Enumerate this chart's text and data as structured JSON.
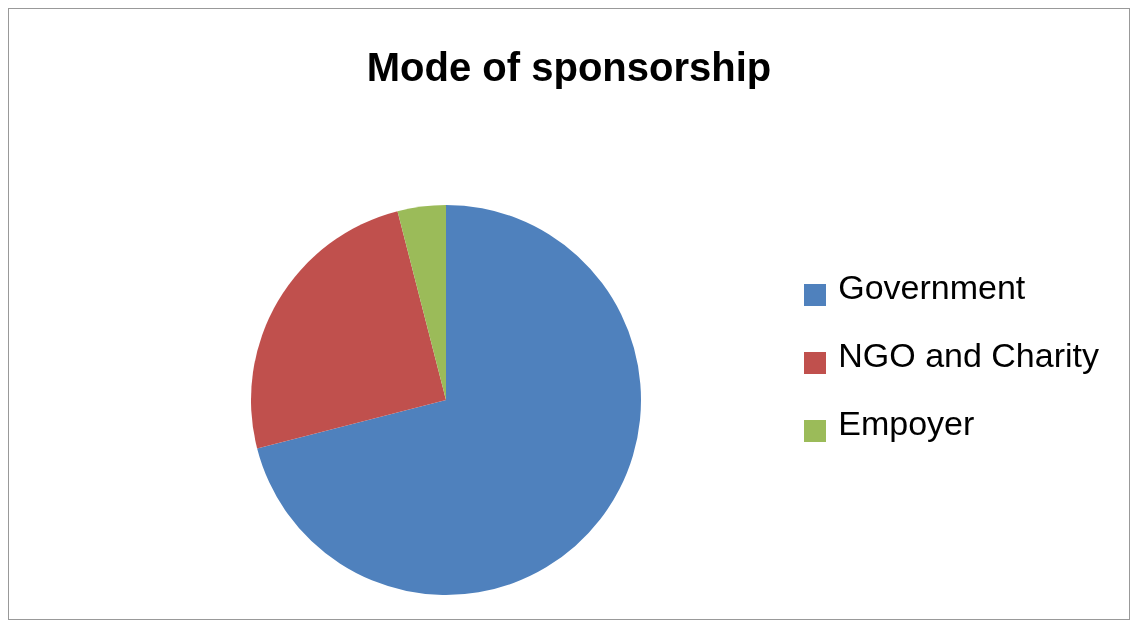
{
  "chart_data": {
    "type": "pie",
    "title": "Mode of sponsorship",
    "categories": [
      "Government",
      "NGO and Charity",
      "Empoyer"
    ],
    "values": [
      71,
      25,
      4
    ],
    "colors": [
      "#4f81bd",
      "#c0504d",
      "#9bbb59"
    ],
    "legend": "right"
  }
}
